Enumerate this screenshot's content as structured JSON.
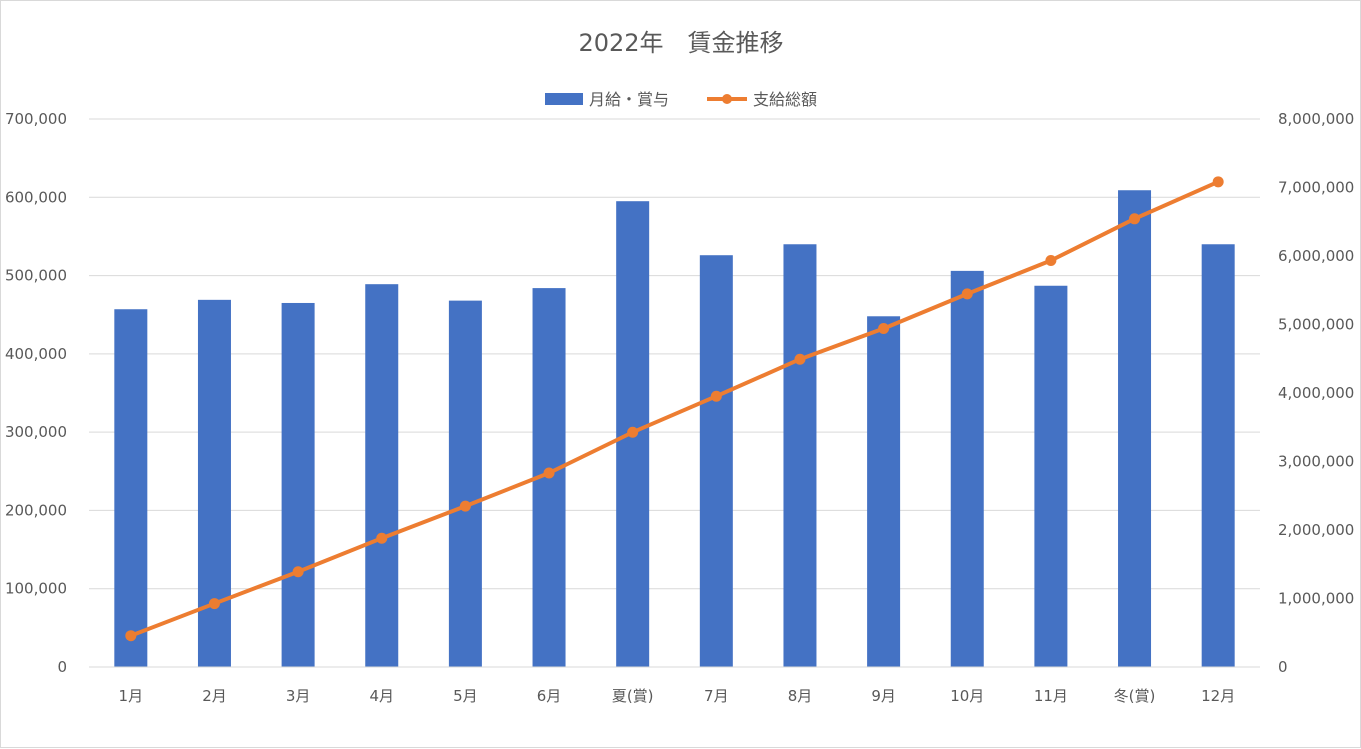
{
  "chart_data": {
    "type": "bar",
    "title": "2022年　賃金推移",
    "categories": [
      "1月",
      "2月",
      "3月",
      "4月",
      "5月",
      "6月",
      "夏(賞)",
      "7月",
      "8月",
      "9月",
      "10月",
      "11月",
      "冬(賞)",
      "12月"
    ],
    "series": [
      {
        "name": "月給・賞与",
        "type": "bar",
        "axis": "left",
        "color": "#4472C4",
        "values": [
          457000,
          469000,
          465000,
          489000,
          468000,
          484000,
          595000,
          526000,
          540000,
          448000,
          506000,
          487000,
          609000,
          540000
        ]
      },
      {
        "name": "支給総額",
        "type": "line",
        "axis": "right",
        "color": "#ED7D31",
        "values": [
          457000,
          926000,
          1391000,
          1880000,
          2348000,
          2832000,
          3427000,
          3953000,
          4493000,
          4941000,
          5447000,
          5934000,
          6543000,
          7083000
        ]
      }
    ],
    "y_left": {
      "min": 0,
      "max": 700000,
      "step": 100000,
      "tick_labels": [
        "0",
        "100,000",
        "200,000",
        "300,000",
        "400,000",
        "500,000",
        "600,000",
        "700,000"
      ]
    },
    "y_right": {
      "min": 0,
      "max": 8000000,
      "step": 1000000,
      "tick_labels": [
        "0",
        "1,000,000",
        "2,000,000",
        "3,000,000",
        "4,000,000",
        "5,000,000",
        "6,000,000",
        "7,000,000",
        "8,000,000"
      ]
    },
    "grid": true,
    "legend_position": "top",
    "gridline_color": "#d9d9d9",
    "text_color": "#595959"
  }
}
